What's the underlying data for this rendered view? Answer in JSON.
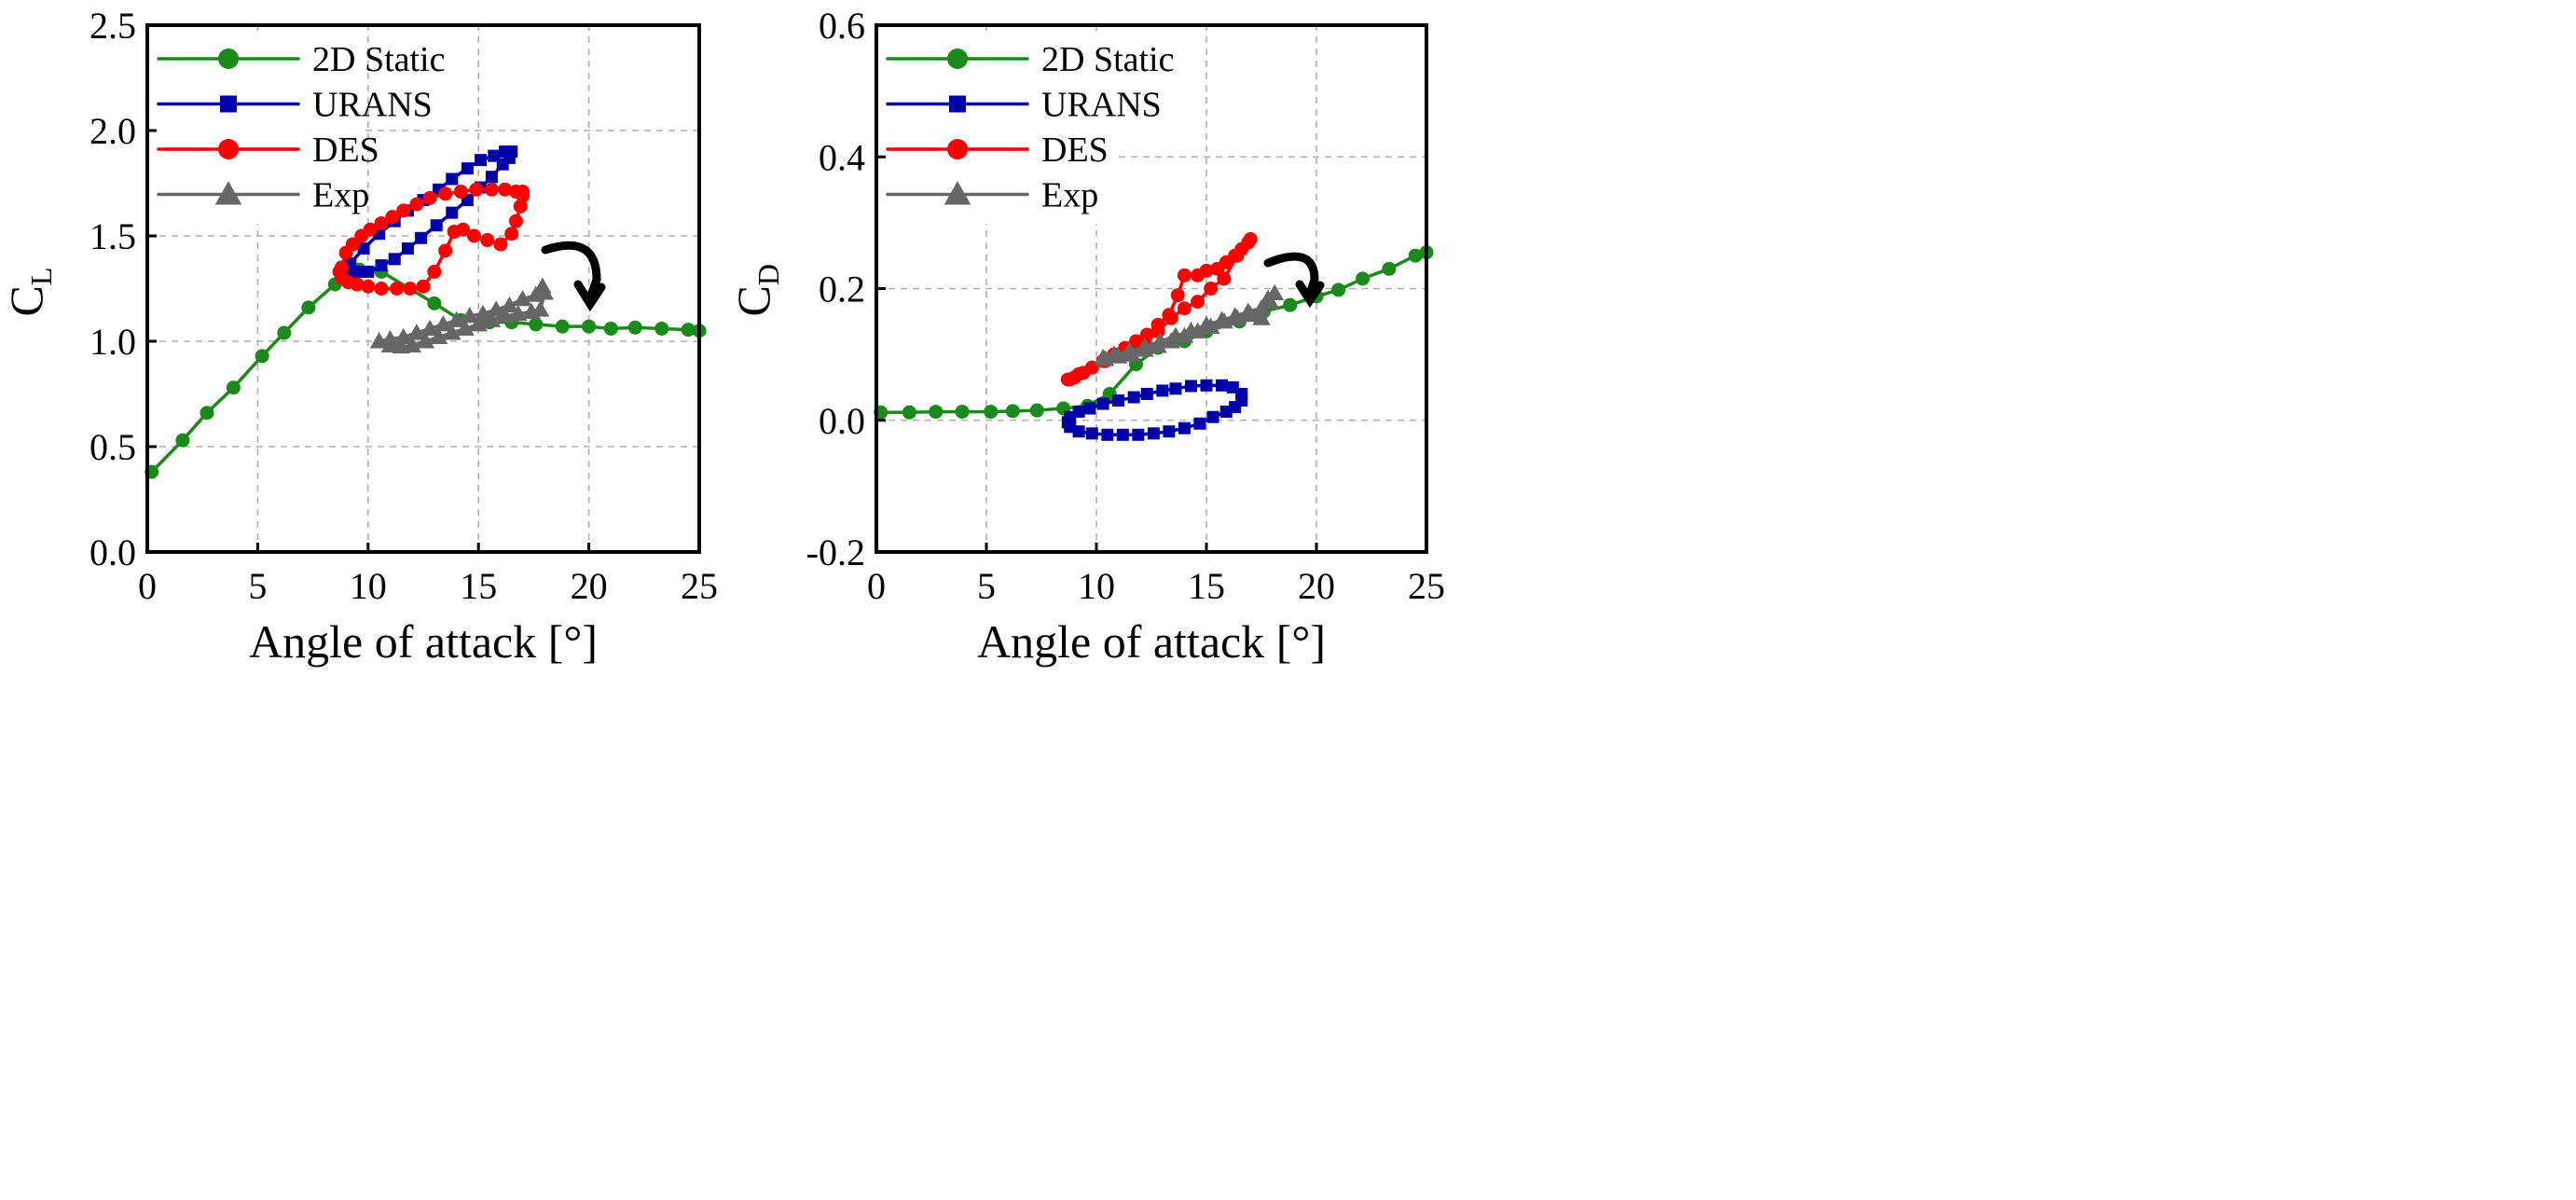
{
  "chart_data": [
    {
      "type": "line",
      "xlabel": "Angle of attack [°]",
      "ylabel_main": "C",
      "ylabel_sub": "L",
      "xlim": [
        0,
        25
      ],
      "ylim": [
        0,
        2.5
      ],
      "xticks": [
        "0",
        "5",
        "10",
        "15",
        "20",
        "25"
      ],
      "xtick_values": [
        0,
        5,
        10,
        15,
        20,
        25
      ],
      "yticks": [
        "0.0",
        "0.5",
        "1.0",
        "1.5",
        "2.0",
        "2.5"
      ],
      "ytick_values": [
        0,
        0.5,
        1,
        1.5,
        2,
        2.5
      ],
      "grid": true,
      "legend_position": "top-left",
      "series": [
        {
          "name": "2D Static",
          "color": "#1a8a1a",
          "marker": "circle",
          "points": [
            [
              0.2,
              0.38
            ],
            [
              1.6,
              0.53
            ],
            [
              2.7,
              0.66
            ],
            [
              3.9,
              0.78
            ],
            [
              5.2,
              0.93
            ],
            [
              6.2,
              1.04
            ],
            [
              7.3,
              1.16
            ],
            [
              8.5,
              1.27
            ],
            [
              9.6,
              1.34
            ],
            [
              10.6,
              1.33
            ],
            [
              13,
              1.18
            ],
            [
              14.2,
              1.1
            ],
            [
              15.5,
              1.09
            ],
            [
              16.5,
              1.09
            ],
            [
              17.6,
              1.08
            ],
            [
              18.8,
              1.07
            ],
            [
              20,
              1.07
            ],
            [
              21,
              1.06
            ],
            [
              22.1,
              1.065
            ],
            [
              23.3,
              1.06
            ],
            [
              24.5,
              1.055
            ],
            [
              25,
              1.05
            ]
          ]
        },
        {
          "name": "URANS",
          "color": "#0000a8",
          "marker": "square",
          "points": [
            [
              9.0,
              1.33
            ],
            [
              9.2,
              1.37
            ],
            [
              9.8,
              1.44
            ],
            [
              10.5,
              1.51
            ],
            [
              11.2,
              1.57
            ],
            [
              11.8,
              1.62
            ],
            [
              12.5,
              1.67
            ],
            [
              13.2,
              1.72
            ],
            [
              13.8,
              1.77
            ],
            [
              14.5,
              1.82
            ],
            [
              15.1,
              1.86
            ],
            [
              15.7,
              1.88
            ],
            [
              16.2,
              1.9
            ],
            [
              16.5,
              1.9
            ],
            [
              16.4,
              1.87
            ],
            [
              16.1,
              1.84
            ],
            [
              15.6,
              1.78
            ],
            [
              15.1,
              1.73
            ],
            [
              14.5,
              1.67
            ],
            [
              13.8,
              1.61
            ],
            [
              13.1,
              1.55
            ],
            [
              12.4,
              1.49
            ],
            [
              11.8,
              1.44
            ],
            [
              11.2,
              1.39
            ],
            [
              10.6,
              1.36
            ],
            [
              10.0,
              1.33
            ],
            [
              9.5,
              1.33
            ],
            [
              9.0,
              1.33
            ]
          ]
        },
        {
          "name": "DES",
          "color": "#ff0000",
          "marker": "circle",
          "points": [
            [
              8.8,
              1.35
            ],
            [
              9.0,
              1.42
            ],
            [
              9.3,
              1.46
            ],
            [
              9.7,
              1.5
            ],
            [
              10.1,
              1.53
            ],
            [
              10.6,
              1.56
            ],
            [
              11.1,
              1.59
            ],
            [
              11.6,
              1.62
            ],
            [
              12.2,
              1.65
            ],
            [
              12.8,
              1.68
            ],
            [
              13.5,
              1.7
            ],
            [
              14.2,
              1.71
            ],
            [
              14.9,
              1.72
            ],
            [
              15.6,
              1.72
            ],
            [
              16.2,
              1.72
            ],
            [
              16.7,
              1.71
            ],
            [
              17.0,
              1.71
            ],
            [
              17.0,
              1.69
            ],
            [
              16.9,
              1.64
            ],
            [
              16.7,
              1.57
            ],
            [
              16.5,
              1.51
            ],
            [
              16.0,
              1.46
            ],
            [
              15.4,
              1.48
            ],
            [
              14.8,
              1.5
            ],
            [
              14.3,
              1.53
            ],
            [
              13.9,
              1.52
            ],
            [
              13.5,
              1.43
            ],
            [
              13.0,
              1.33
            ],
            [
              12.5,
              1.26
            ],
            [
              11.9,
              1.25
            ],
            [
              11.3,
              1.25
            ],
            [
              10.6,
              1.25
            ],
            [
              10.0,
              1.26
            ],
            [
              9.5,
              1.27
            ],
            [
              9.1,
              1.28
            ],
            [
              8.8,
              1.3
            ],
            [
              8.7,
              1.33
            ]
          ]
        },
        {
          "name": "Exp",
          "color": "#666666",
          "marker": "triangle",
          "points": [
            [
              10.5,
              1.0
            ],
            [
              11.0,
              0.98
            ],
            [
              11.5,
              0.975
            ],
            [
              12.0,
              0.98
            ],
            [
              12.6,
              1.0
            ],
            [
              13.2,
              1.02
            ],
            [
              13.8,
              1.04
            ],
            [
              14.4,
              1.06
            ],
            [
              15.0,
              1.08
            ],
            [
              15.6,
              1.1
            ],
            [
              16.2,
              1.12
            ],
            [
              16.8,
              1.13
            ],
            [
              17.4,
              1.14
            ],
            [
              17.8,
              1.15
            ],
            [
              18.0,
              1.23
            ],
            [
              17.9,
              1.26
            ],
            [
              17.6,
              1.22
            ],
            [
              17.0,
              1.2
            ],
            [
              16.4,
              1.17
            ],
            [
              15.8,
              1.15
            ],
            [
              15.2,
              1.13
            ],
            [
              14.6,
              1.12
            ],
            [
              14.0,
              1.1
            ],
            [
              13.4,
              1.08
            ],
            [
              12.8,
              1.06
            ],
            [
              12.2,
              1.04
            ],
            [
              11.6,
              1.02
            ],
            [
              11.0,
              1.01
            ],
            [
              10.5,
              1.0
            ]
          ]
        }
      ]
    },
    {
      "type": "line",
      "xlabel": "Angle of attack [°]",
      "ylabel_main": "C",
      "ylabel_sub": "D",
      "xlim": [
        0,
        25
      ],
      "ylim": [
        -0.2,
        0.6
      ],
      "xticks": [
        "0",
        "5",
        "10",
        "15",
        "20",
        "25"
      ],
      "xtick_values": [
        0,
        5,
        10,
        15,
        20,
        25
      ],
      "yticks": [
        "-0.2",
        "0.0",
        "0.2",
        "0.4",
        "0.6"
      ],
      "ytick_values": [
        -0.2,
        0,
        0.2,
        0.4,
        0.6
      ],
      "grid": true,
      "legend_position": "top-left",
      "series": [
        {
          "name": "2D Static",
          "color": "#1a8a1a",
          "marker": "circle",
          "points": [
            [
              0.2,
              0.012
            ],
            [
              1.5,
              0.012
            ],
            [
              2.7,
              0.013
            ],
            [
              3.9,
              0.013
            ],
            [
              5.2,
              0.013
            ],
            [
              6.2,
              0.014
            ],
            [
              7.3,
              0.015
            ],
            [
              8.5,
              0.018
            ],
            [
              9.6,
              0.022
            ],
            [
              10.6,
              0.04
            ],
            [
              11.8,
              0.085
            ],
            [
              12.8,
              0.11
            ],
            [
              14.0,
              0.12
            ],
            [
              15.0,
              0.135
            ],
            [
              16.5,
              0.15
            ],
            [
              17.6,
              0.165
            ],
            [
              18.8,
              0.175
            ],
            [
              20.0,
              0.188
            ],
            [
              21.0,
              0.198
            ],
            [
              22.1,
              0.215
            ],
            [
              23.3,
              0.23
            ],
            [
              24.5,
              0.25
            ],
            [
              25,
              0.255
            ]
          ]
        },
        {
          "name": "URANS",
          "color": "#0000a8",
          "marker": "square",
          "points": [
            [
              8.8,
              0.005
            ],
            [
              9.2,
              0.013
            ],
            [
              9.7,
              0.018
            ],
            [
              10.3,
              0.025
            ],
            [
              11.0,
              0.03
            ],
            [
              11.7,
              0.035
            ],
            [
              12.3,
              0.04
            ],
            [
              13.0,
              0.045
            ],
            [
              13.6,
              0.048
            ],
            [
              14.3,
              0.052
            ],
            [
              15.0,
              0.053
            ],
            [
              15.7,
              0.053
            ],
            [
              16.2,
              0.05
            ],
            [
              16.6,
              0.04
            ],
            [
              16.6,
              0.03
            ],
            [
              16.3,
              0.02
            ],
            [
              15.9,
              0.013
            ],
            [
              15.3,
              0.005
            ],
            [
              14.7,
              -0.005
            ],
            [
              14.0,
              -0.012
            ],
            [
              13.3,
              -0.017
            ],
            [
              12.6,
              -0.02
            ],
            [
              11.9,
              -0.022
            ],
            [
              11.2,
              -0.022
            ],
            [
              10.5,
              -0.022
            ],
            [
              9.8,
              -0.02
            ],
            [
              9.2,
              -0.017
            ],
            [
              8.8,
              -0.01
            ],
            [
              8.7,
              -0.003
            ]
          ]
        },
        {
          "name": "DES",
          "color": "#ff0000",
          "marker": "circle",
          "points": [
            [
              8.7,
              0.062
            ],
            [
              9.0,
              0.065
            ],
            [
              9.4,
              0.072
            ],
            [
              9.8,
              0.08
            ],
            [
              10.3,
              0.09
            ],
            [
              10.8,
              0.1
            ],
            [
              11.3,
              0.11
            ],
            [
              11.8,
              0.12
            ],
            [
              12.3,
              0.13
            ],
            [
              12.8,
              0.145
            ],
            [
              13.3,
              0.16
            ],
            [
              13.7,
              0.19
            ],
            [
              14.0,
              0.22
            ],
            [
              14.6,
              0.22
            ],
            [
              15.0,
              0.227
            ],
            [
              15.5,
              0.23
            ],
            [
              15.9,
              0.24
            ],
            [
              16.3,
              0.25
            ],
            [
              16.6,
              0.26
            ],
            [
              16.9,
              0.27
            ],
            [
              17.0,
              0.275
            ],
            [
              16.4,
              0.25
            ],
            [
              15.8,
              0.215
            ],
            [
              15.2,
              0.2
            ],
            [
              14.6,
              0.18
            ],
            [
              14.0,
              0.17
            ],
            [
              13.4,
              0.155
            ],
            [
              12.8,
              0.135
            ],
            [
              12.2,
              0.12
            ],
            [
              11.6,
              0.11
            ],
            [
              11.0,
              0.1
            ],
            [
              10.4,
              0.09
            ],
            [
              9.8,
              0.08
            ],
            [
              9.2,
              0.07
            ],
            [
              8.8,
              0.062
            ]
          ]
        },
        {
          "name": "Exp",
          "color": "#666666",
          "marker": "triangle",
          "points": [
            [
              10.3,
              0.095
            ],
            [
              10.8,
              0.1
            ],
            [
              11.5,
              0.105
            ],
            [
              12.2,
              0.112
            ],
            [
              12.9,
              0.12
            ],
            [
              13.6,
              0.128
            ],
            [
              14.3,
              0.136
            ],
            [
              15.0,
              0.145
            ],
            [
              15.7,
              0.152
            ],
            [
              16.3,
              0.158
            ],
            [
              16.9,
              0.165
            ],
            [
              17.5,
              0.17
            ],
            [
              17.9,
              0.18
            ],
            [
              18.1,
              0.193
            ],
            [
              17.8,
              0.185
            ],
            [
              17.5,
              0.155
            ],
            [
              17.0,
              0.16
            ],
            [
              16.4,
              0.155
            ],
            [
              15.8,
              0.15
            ],
            [
              15.2,
              0.142
            ],
            [
              14.6,
              0.135
            ],
            [
              14.0,
              0.128
            ],
            [
              13.4,
              0.12
            ],
            [
              12.8,
              0.113
            ],
            [
              12.2,
              0.107
            ],
            [
              11.6,
              0.1
            ],
            [
              11.0,
              0.097
            ],
            [
              10.4,
              0.093
            ]
          ]
        }
      ]
    }
  ]
}
